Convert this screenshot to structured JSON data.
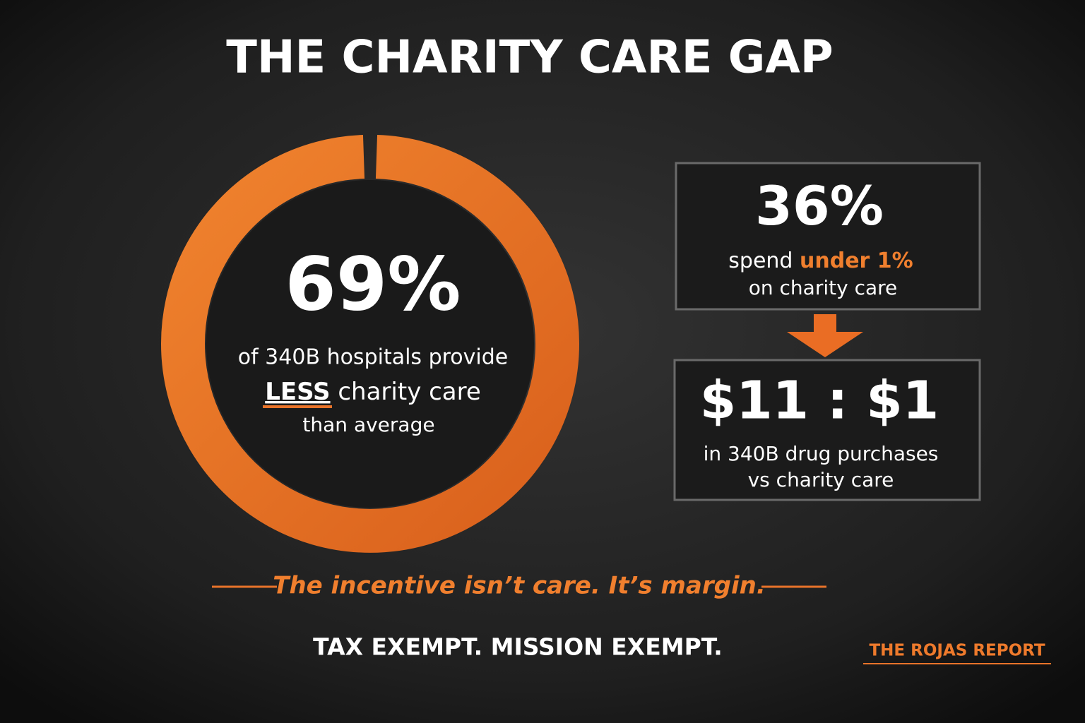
{
  "header": {
    "title": "THE CHARITY CARE GAP"
  },
  "ring_stat": {
    "value": "69%",
    "line1": "of 340B hospitals provide",
    "emphasis": "LESS",
    "line2_rest": " charity care",
    "line3": "than average"
  },
  "box1": {
    "value": "36%",
    "lead": "spend ",
    "highlight": "under 1%",
    "line2": "on charity care"
  },
  "box2": {
    "value": "$11 : $1",
    "line1": "in 340B drug purchases",
    "line2": "vs charity care"
  },
  "tagline": "The incentive isn’t care. It’s margin.",
  "footer": {
    "slogan": "TAX EXEMPT. MISSION EXEMPT.",
    "brand": "THE ROJAS REPORT"
  }
}
